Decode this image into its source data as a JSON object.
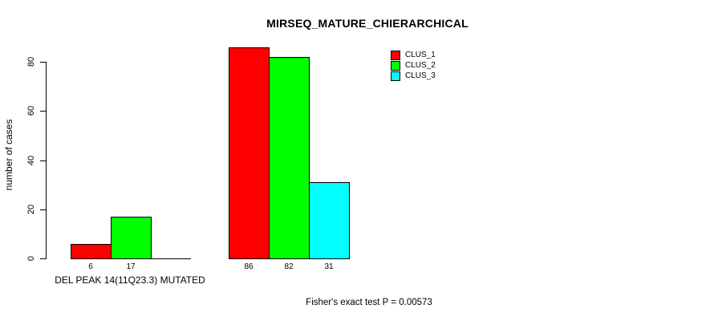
{
  "header": {
    "title": "MIRSEQ_MATURE_CHIERARCHICAL"
  },
  "axes": {
    "ylabel": "number of cases",
    "xlabel": "DEL PEAK 14(11Q23.3) MUTATED"
  },
  "footer": {
    "annotation": "Fisher's exact test P = 0.00573"
  },
  "legend": {
    "items": [
      {
        "label": "CLUS_1",
        "color": "#ff0000"
      },
      {
        "label": "CLUS_2",
        "color": "#00ff00"
      },
      {
        "label": "CLUS_3",
        "color": "#00ffff"
      }
    ]
  },
  "chart_data": {
    "type": "bar",
    "title": "MIRSEQ_MATURE_CHIERARCHICAL",
    "xlabel": "DEL PEAK 14(11Q23.3) MUTATED",
    "ylabel": "number of cases",
    "ylim": [
      0,
      80
    ],
    "yticks": [
      0,
      20,
      40,
      60,
      80
    ],
    "grid": false,
    "legend_position": "top-right",
    "categories": [
      "DEL PEAK 14(11Q23.3) MUTATED",
      ""
    ],
    "series": [
      {
        "name": "CLUS_1",
        "color": "#ff0000",
        "values": [
          6,
          86
        ]
      },
      {
        "name": "CLUS_2",
        "color": "#00ff00",
        "values": [
          17,
          82
        ]
      },
      {
        "name": "CLUS_3",
        "color": "#00ffff",
        "values": [
          0,
          31
        ]
      }
    ],
    "bar_value_labels": [
      [
        6,
        17,
        null
      ],
      [
        86,
        82,
        31
      ]
    ],
    "annotation": "Fisher's exact test P = 0.00573"
  }
}
